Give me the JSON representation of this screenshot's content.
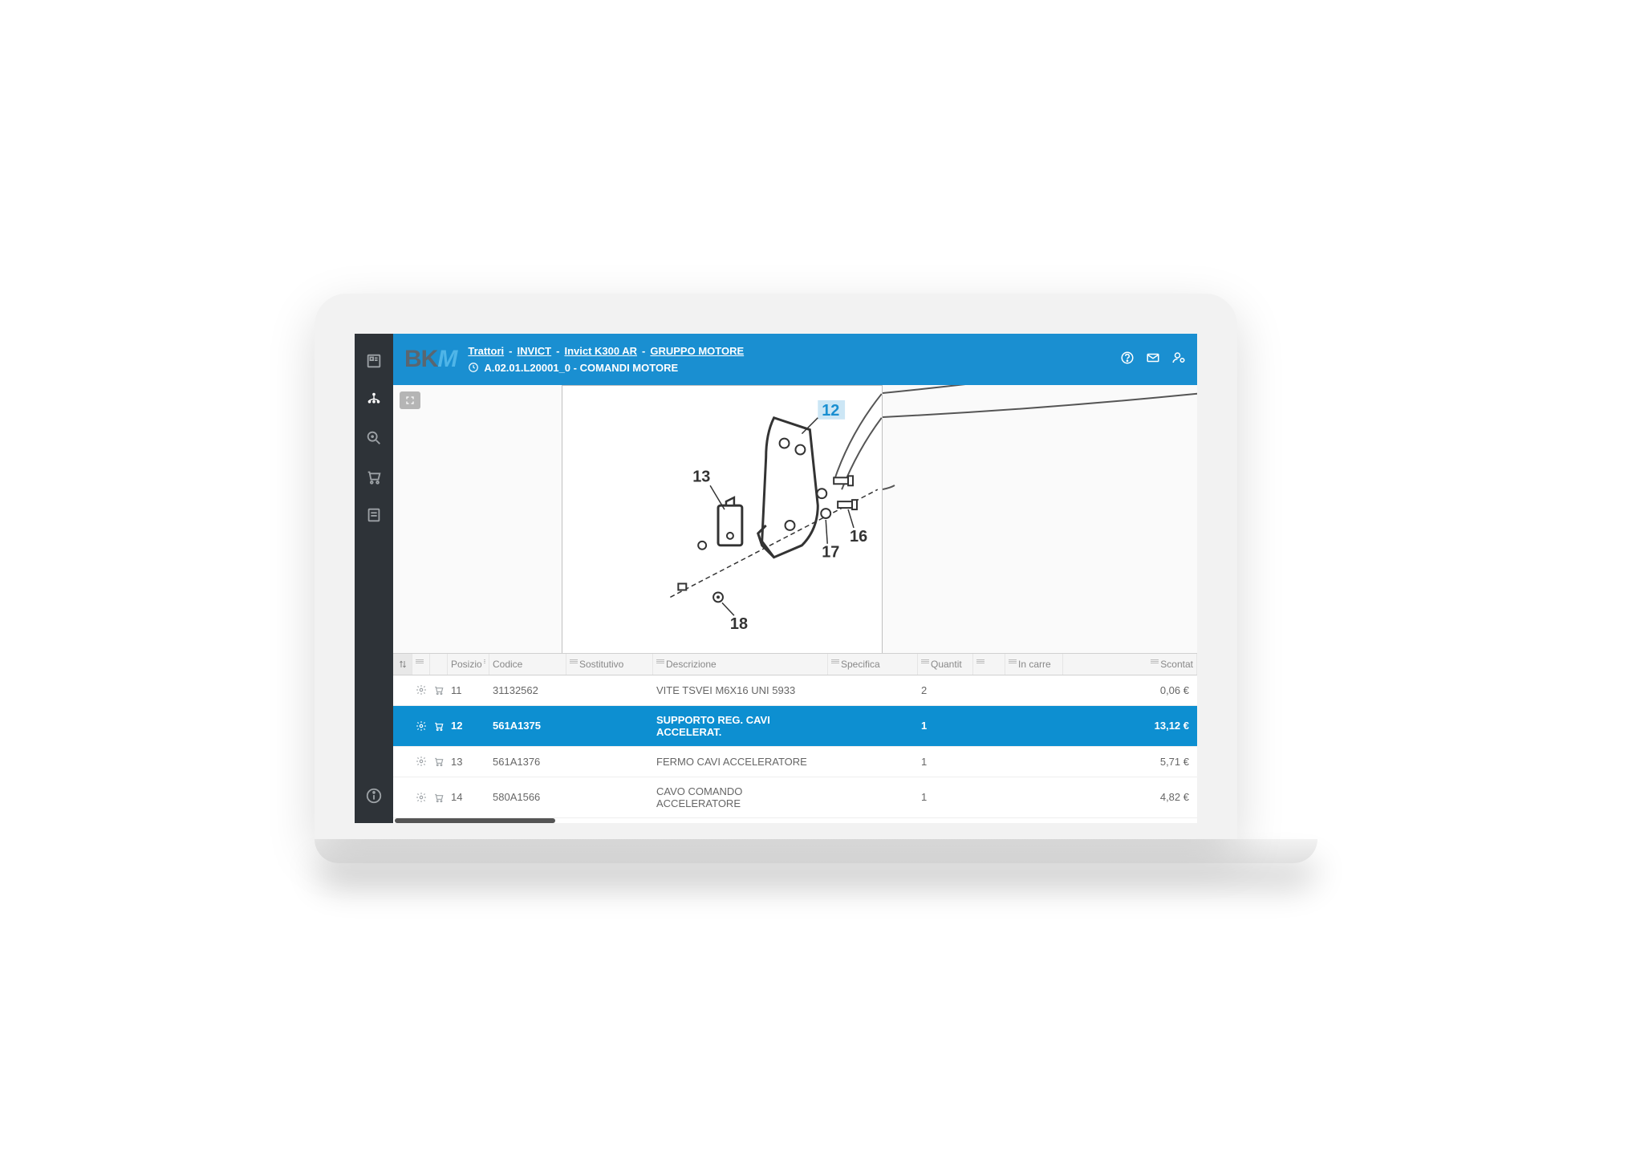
{
  "logo": {
    "b": "B",
    "k": "K",
    "m": "M"
  },
  "breadcrumb": {
    "items": [
      "Trattori",
      "INVICT",
      "Invict    K300 AR",
      "GRUPPO MOTORE"
    ],
    "separator": "-"
  },
  "subtitle": {
    "code": "A.02.01.L20001_0 - COMANDI MOTORE"
  },
  "diagram": {
    "labels": {
      "l12": "12",
      "l13": "13",
      "l16": "16",
      "l17": "17",
      "l18": "18"
    },
    "highlighted": "12"
  },
  "table": {
    "columns": {
      "posizione": "Posizio",
      "codice": "Codice",
      "sostitutivo": "Sostitutivo",
      "descrizione": "Descrizione",
      "specifica": "Specifica",
      "quantita": "Quantit",
      "in_carre": "In carre",
      "scontato": "Scontat"
    },
    "rows": [
      {
        "pos": "11",
        "codice": "31132562",
        "sost": "",
        "desc": "VITE TSVEI M6X16 UNI 5933",
        "spec": "",
        "qty": "2",
        "carre": "",
        "scont": "0,06 €",
        "selected": false
      },
      {
        "pos": "12",
        "codice": "561A1375",
        "sost": "",
        "desc": "SUPPORTO REG. CAVI ACCELERAT.",
        "spec": "",
        "qty": "1",
        "carre": "",
        "scont": "13,12 €",
        "selected": true
      },
      {
        "pos": "13",
        "codice": "561A1376",
        "sost": "",
        "desc": "FERMO CAVI ACCELERATORE",
        "spec": "",
        "qty": "1",
        "carre": "",
        "scont": "5,71 €",
        "selected": false
      },
      {
        "pos": "14",
        "codice": "580A1566",
        "sost": "",
        "desc": "CAVO COMANDO ACCELERATORE",
        "spec": "",
        "qty": "1",
        "carre": "",
        "scont": "4,82 €",
        "selected": false
      }
    ]
  },
  "colors": {
    "primary": "#1a8fd1",
    "sidebar": "#2e3338",
    "highlight_bg": "#cce6f5"
  }
}
